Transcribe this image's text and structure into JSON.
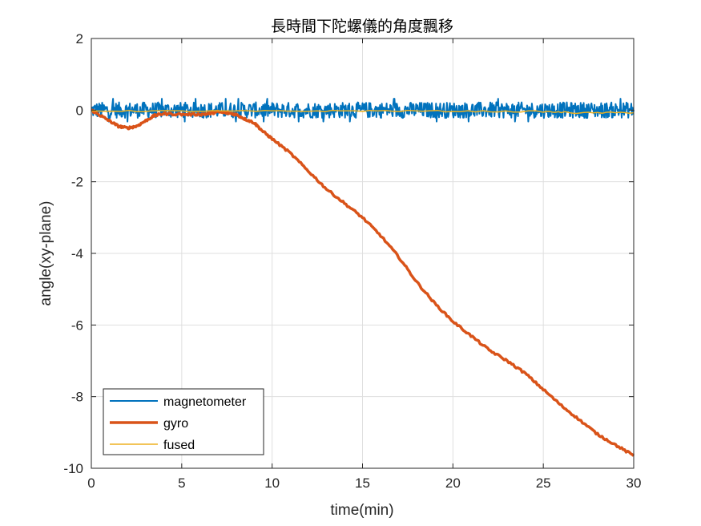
{
  "chart_data": {
    "type": "line",
    "title": "長時間下陀螺儀的角度飄移",
    "xlabel": "time(min)",
    "ylabel": "angle(xy-plane)",
    "xlim": [
      0,
      30
    ],
    "ylim": [
      -10,
      2
    ],
    "xticks": [
      0,
      5,
      10,
      15,
      20,
      25,
      30
    ],
    "yticks": [
      -10,
      -8,
      -6,
      -4,
      -2,
      0,
      2
    ],
    "grid": true,
    "legend_position": "bottom-left",
    "series": [
      {
        "name": "magnetometer",
        "color": "#0072BD",
        "noise_band": {
          "center": 0.0,
          "amplitude": 0.22
        },
        "x": [
          0,
          5,
          10,
          15,
          20,
          25,
          30
        ],
        "y": [
          0.0,
          0.0,
          0.0,
          0.0,
          0.0,
          0.0,
          0.0
        ]
      },
      {
        "name": "gyro",
        "color": "#D95319",
        "x": [
          0,
          0.5,
          1,
          1.5,
          2,
          2.5,
          3,
          3.5,
          4,
          5,
          6,
          6.5,
          7,
          7.5,
          8,
          8.5,
          9,
          9.5,
          10,
          11,
          12,
          13,
          14,
          15,
          16,
          17,
          18,
          19,
          20,
          21,
          22,
          23,
          24,
          25,
          26,
          27,
          28,
          29,
          30
        ],
        "y": [
          0,
          -0.15,
          -0.3,
          -0.45,
          -0.5,
          -0.45,
          -0.3,
          -0.15,
          -0.1,
          -0.12,
          -0.12,
          -0.1,
          -0.05,
          -0.08,
          -0.12,
          -0.25,
          -0.35,
          -0.6,
          -0.8,
          -1.2,
          -1.7,
          -2.2,
          -2.6,
          -3.0,
          -3.5,
          -4.1,
          -4.8,
          -5.4,
          -5.9,
          -6.3,
          -6.7,
          -7.0,
          -7.35,
          -7.8,
          -8.25,
          -8.65,
          -9.05,
          -9.35,
          -9.65
        ]
      },
      {
        "name": "fused",
        "color": "#EDB120",
        "x": [
          0,
          5,
          10,
          15,
          20,
          25,
          27,
          30
        ],
        "y": [
          -0.02,
          -0.03,
          -0.03,
          -0.02,
          -0.03,
          -0.04,
          -0.08,
          -0.07
        ]
      }
    ]
  }
}
